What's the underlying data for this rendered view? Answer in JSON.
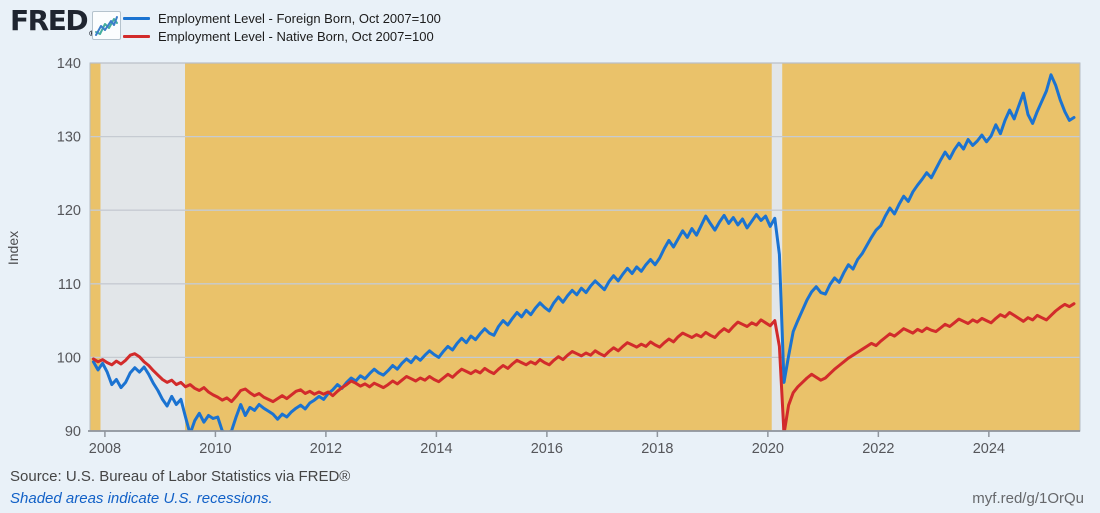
{
  "header": {
    "logo_text": "FRED",
    "registered_mark": "®",
    "logo_icon": "line-chart-sparkline-icon"
  },
  "legend": {
    "items": [
      {
        "id": "foreign-born",
        "label": "Employment Level - Foreign Born, Oct 2007=100",
        "color": "#1b73d1"
      },
      {
        "id": "native-born",
        "label": "Employment Level - Native Born, Oct 2007=100",
        "color": "#d22b2b"
      }
    ]
  },
  "footer": {
    "source": "Source: U.S. Bureau of Labor Statistics via FRED®",
    "recession_note": "Shaded areas indicate U.S. recessions.",
    "short_url": "myf.red/g/1OrQu"
  },
  "chart_data": {
    "type": "line",
    "title": "",
    "xlabel": "",
    "ylabel": "Index",
    "ylim": [
      90,
      140
    ],
    "xlim": [
      2007.73,
      2025.65
    ],
    "y_ticks": [
      90,
      100,
      110,
      120,
      130,
      140
    ],
    "x_ticks": [
      2008,
      2010,
      2012,
      2014,
      2016,
      2018,
      2020,
      2022,
      2024
    ],
    "grid": true,
    "legend_position": "top-left",
    "plot_bg_color": "#eac26a",
    "recession_band_color": "#e2e6e9",
    "gridline_color": "#c6cbd2",
    "axis_line_color": "#8f959d",
    "border_color": "#b7bdc5",
    "tick_label_color": "#55565a",
    "frequency": "monthly",
    "x_start": 2007.7917,
    "x_step_years": 0.0833333,
    "recessions": [
      {
        "start": 2007.92,
        "end": 2009.45
      },
      {
        "start": 2020.07,
        "end": 2020.26
      }
    ],
    "series": [
      {
        "id": "foreign-born",
        "name": "Employment Level - Foreign Born, Oct 2007=100",
        "color": "#1b73d1",
        "values": [
          99.4,
          98.3,
          99.2,
          98.0,
          96.3,
          97.0,
          95.9,
          96.6,
          97.9,
          98.6,
          98.0,
          98.7,
          97.7,
          96.5,
          95.5,
          94.3,
          93.4,
          94.7,
          93.6,
          94.3,
          91.9,
          89.6,
          91.4,
          92.4,
          91.2,
          92.1,
          91.7,
          91.9,
          90.0,
          89.7,
          90.0,
          91.9,
          93.6,
          92.1,
          93.2,
          92.8,
          93.6,
          93.1,
          92.7,
          92.3,
          91.6,
          92.3,
          91.9,
          92.6,
          93.1,
          93.5,
          93.0,
          93.8,
          94.2,
          94.7,
          94.3,
          95.1,
          95.6,
          96.3,
          95.8,
          96.6,
          97.2,
          96.8,
          97.5,
          97.1,
          97.8,
          98.4,
          97.9,
          97.6,
          98.2,
          98.9,
          98.4,
          99.2,
          99.8,
          99.3,
          100.1,
          99.6,
          100.3,
          100.9,
          100.4,
          100.0,
          100.8,
          101.5,
          101.0,
          101.9,
          102.6,
          102.0,
          102.9,
          102.4,
          103.2,
          103.9,
          103.3,
          103.0,
          104.2,
          105.0,
          104.4,
          105.3,
          106.1,
          105.5,
          106.4,
          105.8,
          106.7,
          107.4,
          106.8,
          106.3,
          107.4,
          108.2,
          107.5,
          108.4,
          109.1,
          108.5,
          109.4,
          108.8,
          109.7,
          110.4,
          109.8,
          109.2,
          110.3,
          111.1,
          110.4,
          111.3,
          112.1,
          111.4,
          112.3,
          111.7,
          112.6,
          113.3,
          112.6,
          113.5,
          114.8,
          115.9,
          115.0,
          116.1,
          117.2,
          116.3,
          117.5,
          116.6,
          117.9,
          119.2,
          118.2,
          117.3,
          118.4,
          119.3,
          118.2,
          119.0,
          118.0,
          118.8,
          117.6,
          118.5,
          119.4,
          118.6,
          119.2,
          117.8,
          118.9,
          114.0,
          96.6,
          100.2,
          103.5,
          105.0,
          106.4,
          107.8,
          108.9,
          109.6,
          108.8,
          108.6,
          109.9,
          110.8,
          110.2,
          111.5,
          112.6,
          112.0,
          113.3,
          114.1,
          115.2,
          116.3,
          117.3,
          117.9,
          119.2,
          120.3,
          119.5,
          120.8,
          121.9,
          121.2,
          122.5,
          123.4,
          124.2,
          125.1,
          124.4,
          125.6,
          126.8,
          127.9,
          127.0,
          128.2,
          129.1,
          128.3,
          129.6,
          128.8,
          129.4,
          130.2,
          129.3,
          130.1,
          131.6,
          130.4,
          132.2,
          133.6,
          132.4,
          134.2,
          135.9,
          133.0,
          131.8,
          133.4,
          134.8,
          136.2,
          138.4,
          137.0,
          135.0,
          133.4,
          132.2,
          132.6
        ]
      },
      {
        "id": "native-born",
        "name": "Employment Level - Native Born, Oct 2007=100",
        "color": "#d22b2b",
        "values": [
          99.8,
          99.4,
          99.7,
          99.3,
          99.0,
          99.5,
          99.1,
          99.6,
          100.3,
          100.5,
          100.1,
          99.4,
          98.9,
          98.2,
          97.6,
          97.0,
          96.6,
          96.9,
          96.3,
          96.6,
          96.0,
          96.3,
          95.8,
          95.5,
          95.9,
          95.3,
          94.9,
          94.6,
          94.2,
          94.5,
          94.0,
          94.7,
          95.5,
          95.7,
          95.2,
          94.8,
          95.1,
          94.6,
          94.3,
          94.0,
          94.4,
          94.8,
          94.4,
          94.9,
          95.4,
          95.6,
          95.1,
          95.4,
          95.0,
          95.3,
          95.0,
          95.3,
          94.8,
          95.4,
          95.9,
          96.3,
          96.8,
          96.5,
          96.1,
          96.4,
          96.0,
          96.5,
          96.2,
          95.9,
          96.3,
          96.8,
          96.4,
          96.9,
          97.4,
          97.1,
          96.8,
          97.2,
          96.9,
          97.4,
          97.0,
          96.7,
          97.2,
          97.7,
          97.3,
          97.9,
          98.4,
          98.1,
          97.8,
          98.2,
          97.9,
          98.5,
          98.1,
          97.8,
          98.4,
          98.9,
          98.5,
          99.1,
          99.6,
          99.3,
          99.0,
          99.4,
          99.1,
          99.7,
          99.3,
          99.0,
          99.6,
          100.1,
          99.7,
          100.3,
          100.8,
          100.5,
          100.2,
          100.6,
          100.3,
          100.9,
          100.5,
          100.2,
          100.8,
          101.3,
          100.9,
          101.5,
          102.0,
          101.7,
          101.4,
          101.8,
          101.5,
          102.1,
          101.7,
          101.4,
          102.0,
          102.5,
          102.1,
          102.8,
          103.3,
          103.0,
          102.7,
          103.1,
          102.8,
          103.4,
          103.0,
          102.7,
          103.4,
          103.9,
          103.5,
          104.2,
          104.8,
          104.5,
          104.2,
          104.7,
          104.4,
          105.1,
          104.7,
          104.3,
          105.0,
          101.5,
          89.6,
          93.5,
          95.2,
          96.0,
          96.6,
          97.2,
          97.7,
          97.3,
          96.9,
          97.2,
          97.8,
          98.4,
          98.9,
          99.4,
          99.9,
          100.3,
          100.7,
          101.1,
          101.5,
          101.9,
          101.6,
          102.2,
          102.7,
          103.2,
          102.9,
          103.4,
          103.9,
          103.6,
          103.3,
          103.8,
          103.5,
          104.0,
          103.7,
          103.5,
          104.0,
          104.5,
          104.2,
          104.7,
          105.2,
          104.9,
          104.6,
          105.1,
          104.8,
          105.3,
          105.0,
          104.7,
          105.3,
          105.8,
          105.5,
          106.1,
          105.7,
          105.3,
          104.9,
          105.4,
          105.1,
          105.7,
          105.4,
          105.1,
          105.7,
          106.3,
          106.8,
          107.2,
          106.9,
          107.3
        ]
      }
    ]
  }
}
